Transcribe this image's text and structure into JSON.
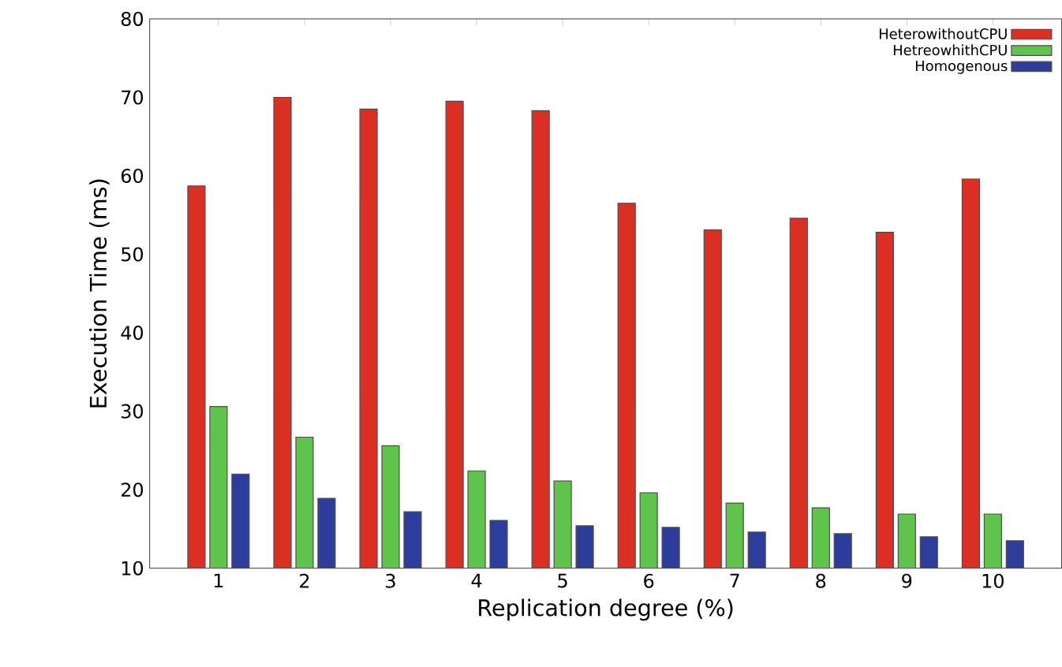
{
  "chart_data": {
    "type": "bar",
    "xlabel": "Replication degree (%)",
    "ylabel": "Execution Time (ms)",
    "categories": [
      "1",
      "2",
      "3",
      "4",
      "5",
      "6",
      "7",
      "8",
      "9",
      "10"
    ],
    "series": [
      {
        "name": "HeterowithoutCPU",
        "color": "#dc2f24",
        "values": [
          58.7,
          70,
          68.5,
          69.5,
          68.3,
          56.5,
          53.1,
          54.6,
          52.8,
          59.6
        ]
      },
      {
        "name": "HetreowhithCPU",
        "color": "#5ec44b",
        "values": [
          30.6,
          26.7,
          25.6,
          22.4,
          21.1,
          19.6,
          18.3,
          17.7,
          16.9,
          16.9
        ]
      },
      {
        "name": "Homogenous",
        "color": "#2d3d9c",
        "values": [
          22.0,
          18.9,
          17.2,
          16.1,
          15.4,
          15.2,
          14.6,
          14.4,
          14.0,
          13.5
        ]
      }
    ],
    "ylim": [
      10,
      80
    ],
    "yticks": [
      10,
      20,
      30,
      40,
      50,
      60,
      70,
      80
    ],
    "grid": false,
    "legend": "top right"
  }
}
